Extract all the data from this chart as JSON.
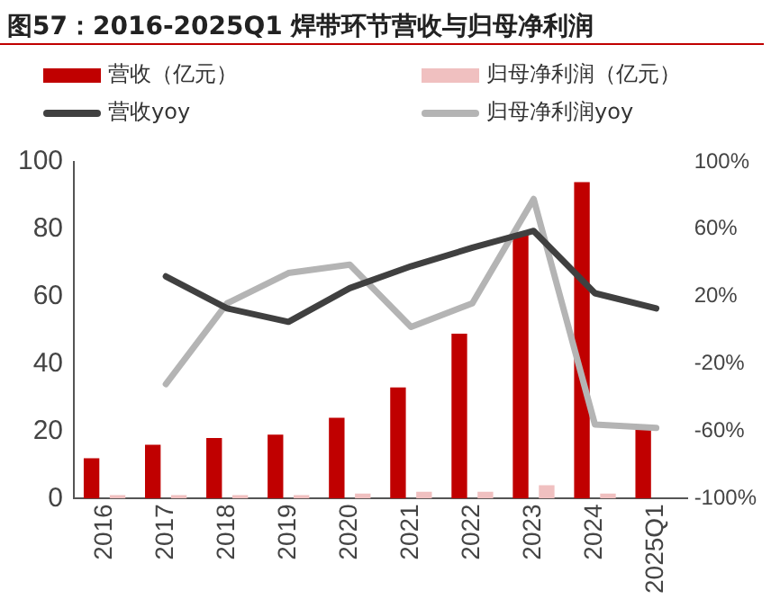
{
  "chart_data": {
    "type": "bar",
    "title": "图57：2016-2025Q1 焊带环节营收与归母净利润",
    "categories": [
      "2016",
      "2017",
      "2018",
      "2019",
      "2020",
      "2021",
      "2022",
      "2023",
      "2024",
      "2025Q1"
    ],
    "series": [
      {
        "name": "营收（亿元）",
        "color": "#c00000",
        "values": [
          12,
          16,
          18,
          19,
          24,
          33,
          49,
          79,
          94,
          22
        ]
      },
      {
        "name": "归母净利润（亿元）",
        "color": "#f0c0c0",
        "values": [
          1,
          1,
          1,
          1,
          1.5,
          2,
          2,
          4,
          1.5,
          null
        ]
      },
      {
        "name": "营收yoy",
        "type": "line",
        "axis": "y2",
        "color": "#404040",
        "values": [
          null,
          32,
          13,
          5,
          25,
          38,
          49,
          59,
          22,
          13
        ]
      },
      {
        "name": "归母净利润yoy",
        "type": "line",
        "axis": "y2",
        "color": "#b4b4b4",
        "values": [
          null,
          -32,
          16,
          34,
          39,
          2,
          16,
          78,
          -56,
          -58
        ]
      }
    ],
    "ylim": [
      0,
      100
    ],
    "yticks": [
      0,
      20,
      40,
      60,
      80,
      100
    ],
    "y2lim": [
      -100,
      100
    ],
    "y2ticks": [
      {
        "value": -100,
        "label": "-100%"
      },
      {
        "value": -60,
        "label": "-60%"
      },
      {
        "value": -20,
        "label": "-20%"
      },
      {
        "value": 20,
        "label": "20%"
      },
      {
        "value": 60,
        "label": "60%"
      },
      {
        "value": 100,
        "label": "100%"
      }
    ],
    "grid": false,
    "legend": "top",
    "marker": "none",
    "line_style": "solid"
  }
}
